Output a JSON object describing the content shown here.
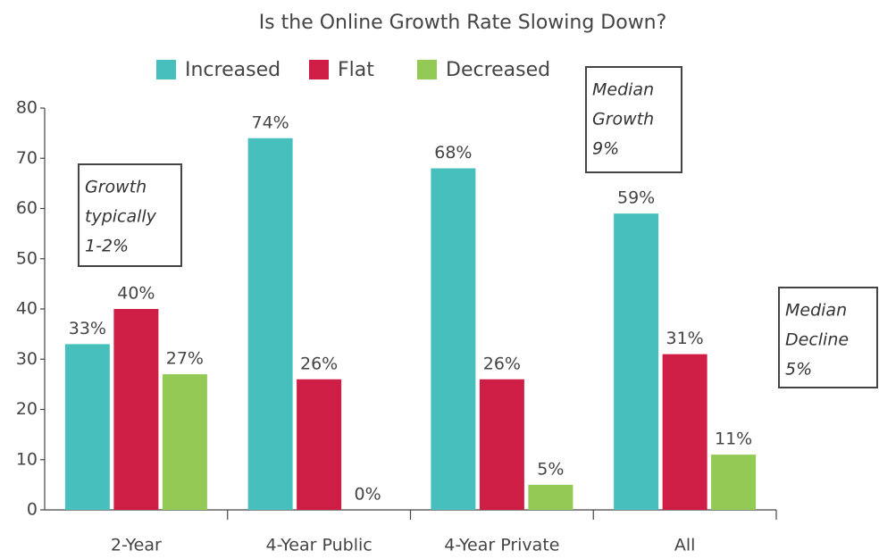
{
  "chart_data": {
    "type": "bar",
    "title": "Is the Online Growth Rate Slowing Down?",
    "categories": [
      "2-Year",
      "4-Year Public",
      "4-Year Private",
      "All"
    ],
    "series": [
      {
        "name": "Increased",
        "color": "#47c0bd",
        "values": [
          33,
          74,
          68,
          59
        ],
        "value_labels": [
          "33%",
          "74%",
          "68%",
          "59%"
        ]
      },
      {
        "name": "Flat",
        "color": "#cf1e45",
        "values": [
          40,
          26,
          26,
          31
        ],
        "value_labels": [
          "40%",
          "26%",
          "26%",
          "31%"
        ]
      },
      {
        "name": "Decreased",
        "color": "#93c955",
        "values": [
          27,
          0,
          5,
          11
        ],
        "value_labels": [
          "27%",
          "0%",
          "5%",
          "11%"
        ]
      }
    ],
    "ylim": [
      0,
      80
    ],
    "yticks": [
      0,
      10,
      20,
      30,
      40,
      50,
      60,
      70,
      80
    ],
    "grid": false,
    "legend": "top",
    "annotations": [
      [
        "Growth",
        "typically",
        "1-2%"
      ],
      [
        "Median",
        "Growth",
        "9%"
      ],
      [
        "Median",
        "Decline",
        "5%"
      ]
    ]
  }
}
